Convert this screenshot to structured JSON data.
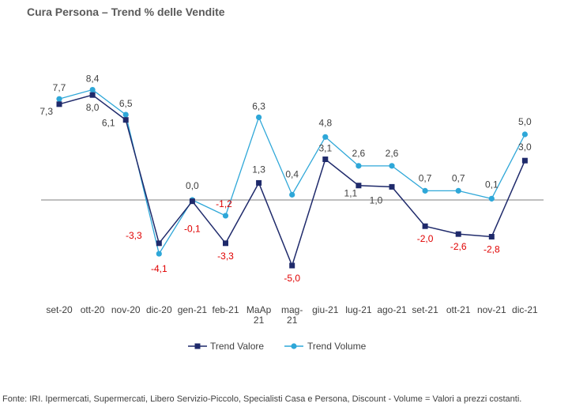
{
  "chart_data": {
    "type": "line",
    "title": "Cura Persona – Trend % delle Vendite",
    "categories": [
      "set-20",
      "ott-20",
      "nov-20",
      "dic-20",
      "gen-21",
      "feb-21",
      "MaAp 21",
      "mag-21",
      "giu-21",
      "lug-21",
      "ago-21",
      "set-21",
      "ott-21",
      "nov-21",
      "dic-21"
    ],
    "category_lines": [
      [
        "set-20"
      ],
      [
        "ott-20"
      ],
      [
        "nov-20"
      ],
      [
        "dic-20"
      ],
      [
        "gen-21"
      ],
      [
        "feb-21"
      ],
      [
        "MaAp",
        "21"
      ],
      [
        "mag-",
        "21"
      ],
      [
        "giu-21"
      ],
      [
        "lug-21"
      ],
      [
        "ago-21"
      ],
      [
        "set-21"
      ],
      [
        "ott-21"
      ],
      [
        "nov-21"
      ],
      [
        "dic-21"
      ]
    ],
    "series": [
      {
        "name": "Trend Valore",
        "color": "#1f2a6b",
        "marker": "square",
        "values": [
          7.3,
          8.0,
          6.1,
          -3.3,
          -0.1,
          -3.3,
          1.3,
          -5.0,
          3.1,
          1.1,
          1.0,
          -2.0,
          -2.6,
          -2.8,
          3.0
        ],
        "labels": [
          "7,3",
          "8,0",
          "6,1",
          "-3,3",
          "-0,1",
          "-3,3",
          "1,3",
          "-5,0",
          "3,1",
          "1,1",
          "1,0",
          "-2,0",
          "-2,6",
          "-2,8",
          "3,0"
        ]
      },
      {
        "name": "Trend Volume",
        "color": "#2ea7d8",
        "marker": "circle",
        "values": [
          7.7,
          8.4,
          6.5,
          -4.1,
          0.0,
          -1.2,
          6.3,
          0.4,
          4.8,
          2.6,
          2.6,
          0.7,
          0.7,
          0.1,
          5.0
        ],
        "labels": [
          "7,7",
          "8,4",
          "6,5",
          "-4,1",
          "0,0",
          "-1,2",
          "6,3",
          "0,4",
          "4,8",
          "2,6",
          "2,6",
          "0,7",
          "0,7",
          "0,1",
          "5,0"
        ]
      }
    ],
    "negative_label_color": "#e00000",
    "ylim": [
      -9,
      9.6
    ],
    "grid": false,
    "legend_position": "bottom"
  },
  "footer": "Fonte: IRI. Ipermercati, Supermercati, Libero Servizio-Piccolo,  Specialisti Casa e Persona, Discount -  Volume =  Valori a prezzi  costanti."
}
